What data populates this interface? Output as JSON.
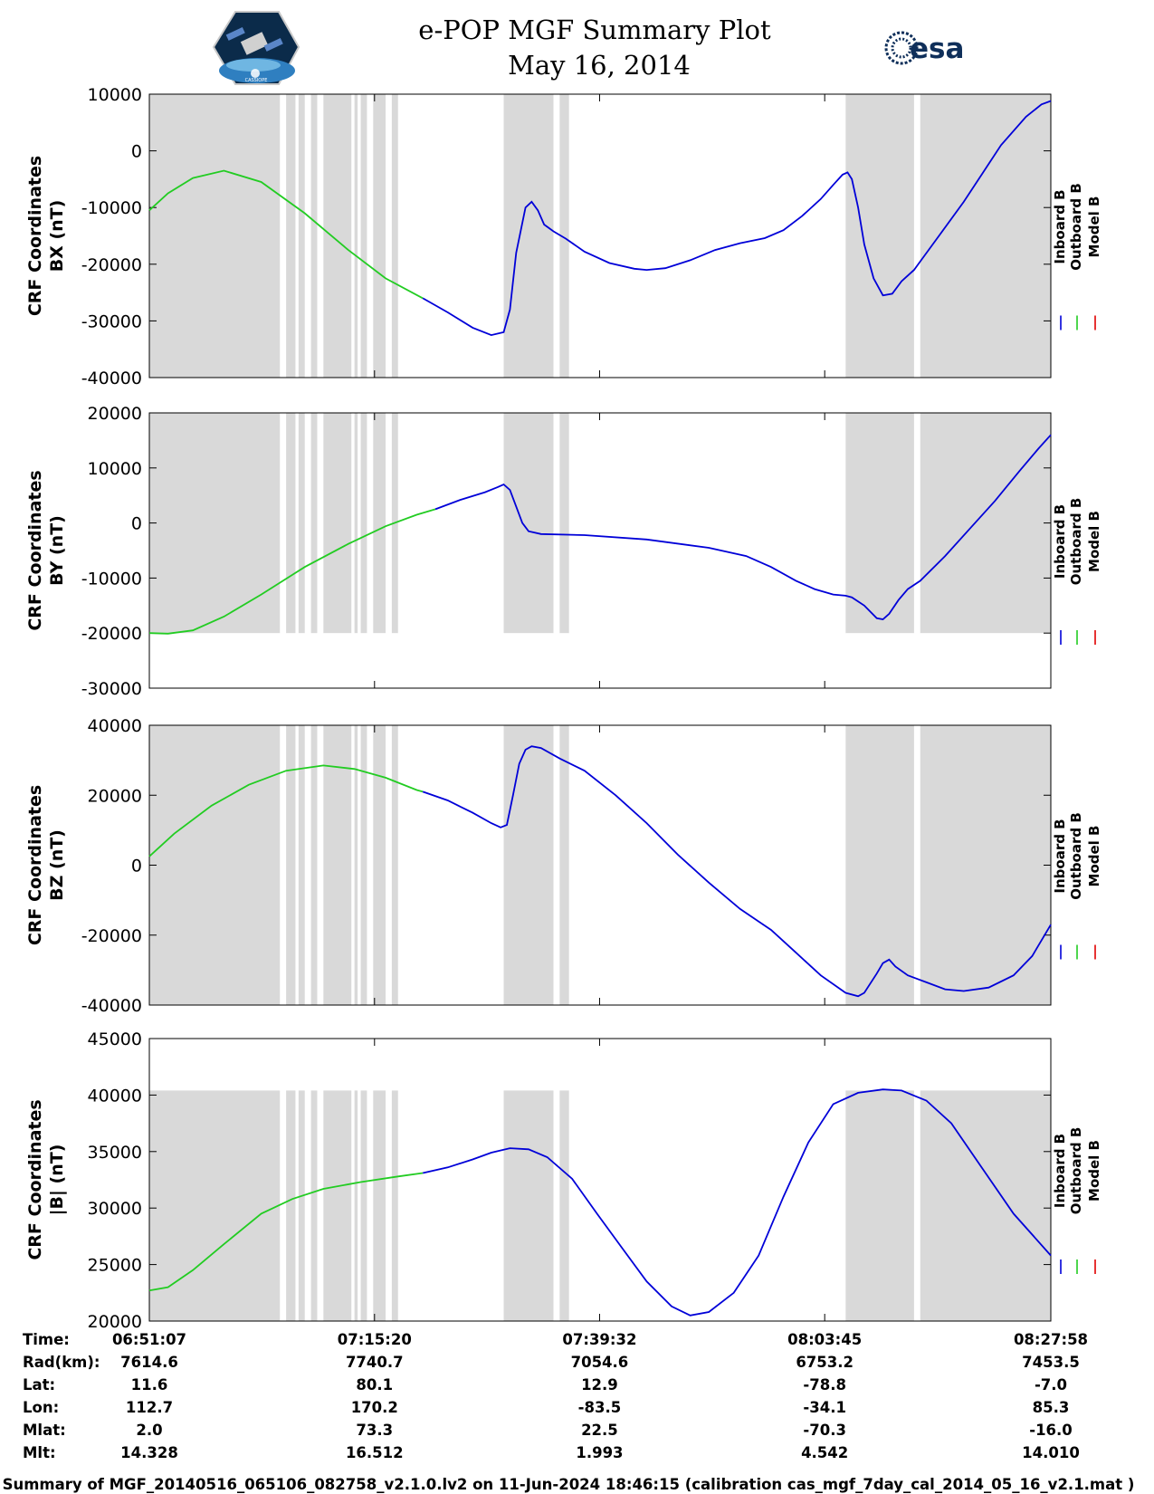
{
  "header": {
    "title": "e-POP MGF Summary Plot",
    "date": "May 16, 2014",
    "esa_logo_text": "esa",
    "cassiope_logo_text": "CASSIOPE"
  },
  "colors": {
    "inboard": "#0000d8",
    "outboard": "#22cc22",
    "model": "#e00000",
    "shade": "#d9d9d9"
  },
  "legend": [
    "Inboard B",
    "Outboard B",
    "Model B"
  ],
  "footer": "Summary of MGF_20140516_065106_082758_v2.1.0.lv2 on 11-Jun-2024 18:46:15 (calibration cas_mgf_7day_cal_2014_05_16_v2.1.mat )",
  "ephemeris": {
    "labels": [
      "Time:",
      "Rad(km):",
      "Lat:",
      "Lon:",
      "Mlat:",
      "Mlt:"
    ],
    "columns": [
      [
        "06:51:07",
        "7614.6",
        "11.6",
        "112.7",
        "2.0",
        "14.328"
      ],
      [
        "07:15:20",
        "7740.7",
        "80.1",
        "170.2",
        "73.3",
        "16.512"
      ],
      [
        "07:39:32",
        "7054.6",
        "12.9",
        "-83.5",
        "22.5",
        "1.993"
      ],
      [
        "08:03:45",
        "6753.2",
        "-78.8",
        "-34.1",
        "-70.3",
        "4.542"
      ],
      [
        "08:27:58",
        "7453.5",
        "-7.0",
        "85.3",
        "-16.0",
        "14.010"
      ]
    ]
  },
  "chart_data": [
    {
      "type": "line",
      "ylabel_line1": "CRF Coordinates",
      "ylabel_line2": "BX (nT)",
      "ylim": [
        -40000,
        10000
      ],
      "yticks": [
        -40000,
        -30000,
        -20000,
        -10000,
        0,
        10000
      ],
      "xlim_min": [
        0,
        96.85
      ],
      "shade_ylim": [
        -40000,
        10000
      ],
      "series": [
        {
          "name": "Outboard B",
          "points": [
            [
              0,
              -10500
            ],
            [
              3,
              -7500
            ],
            [
              7,
              -4800
            ],
            [
              12,
              -3500
            ],
            [
              18,
              -5500
            ],
            [
              25,
              -11000
            ],
            [
              32,
              -17500
            ],
            [
              38,
              -22500
            ],
            [
              44,
              -26000
            ]
          ]
        },
        {
          "name": "Inboard B",
          "points": [
            [
              44,
              -26000
            ],
            [
              48,
              -28500
            ],
            [
              52,
              -31200
            ],
            [
              55,
              -32500
            ],
            [
              57,
              -32000
            ],
            [
              58,
              -28000
            ],
            [
              59,
              -18000
            ],
            [
              60.5,
              -10000
            ],
            [
              61.5,
              -9000
            ],
            [
              62.5,
              -10500
            ],
            [
              63.5,
              -13000
            ],
            [
              65,
              -14200
            ],
            [
              67,
              -15500
            ],
            [
              70,
              -17800
            ],
            [
              74,
              -19800
            ],
            [
              78,
              -20800
            ],
            [
              80,
              -21000
            ],
            [
              83,
              -20700
            ],
            [
              87,
              -19300
            ],
            [
              91,
              -17500
            ],
            [
              95,
              -16300
            ],
            [
              99,
              -15400
            ],
            [
              102,
              -14000
            ],
            [
              105,
              -11500
            ],
            [
              108,
              -8500
            ],
            [
              110,
              -6000
            ],
            [
              111.5,
              -4200
            ],
            [
              112.3,
              -3800
            ],
            [
              113,
              -5000
            ],
            [
              114,
              -10000
            ],
            [
              115,
              -16500
            ],
            [
              116.5,
              -22500
            ],
            [
              118,
              -25500
            ],
            [
              119.5,
              -25200
            ],
            [
              121,
              -23000
            ],
            [
              123,
              -21000
            ],
            [
              127,
              -15000
            ],
            [
              131,
              -9000
            ],
            [
              134,
              -4000
            ],
            [
              137,
              1000
            ],
            [
              141,
              6000
            ],
            [
              143.5,
              8200
            ],
            [
              145,
              8800
            ]
          ]
        }
      ]
    },
    {
      "type": "line",
      "ylabel_line1": "CRF Coordinates",
      "ylabel_line2": "BY (nT)",
      "ylim": [
        -30000,
        20000
      ],
      "yticks": [
        -30000,
        -20000,
        -10000,
        0,
        10000,
        20000
      ],
      "shade_ylim": [
        -20000,
        20000
      ],
      "series": [
        {
          "name": "Outboard B",
          "points": [
            [
              0,
              -20000
            ],
            [
              3,
              -20100
            ],
            [
              7,
              -19500
            ],
            [
              12,
              -17000
            ],
            [
              18,
              -13000
            ],
            [
              25,
              -8000
            ],
            [
              32,
              -3800
            ],
            [
              38,
              -600
            ],
            [
              43,
              1500
            ],
            [
              46,
              2500
            ]
          ]
        },
        {
          "name": "Inboard B",
          "points": [
            [
              46,
              2500
            ],
            [
              50,
              4200
            ],
            [
              54,
              5600
            ],
            [
              56,
              6500
            ],
            [
              57,
              7000
            ],
            [
              58,
              6000
            ],
            [
              59,
              3000
            ],
            [
              60,
              0
            ],
            [
              61,
              -1500
            ],
            [
              63,
              -2000
            ],
            [
              70,
              -2200
            ],
            [
              80,
              -3000
            ],
            [
              90,
              -4500
            ],
            [
              96,
              -6000
            ],
            [
              100,
              -8000
            ],
            [
              104,
              -10500
            ],
            [
              107,
              -12000
            ],
            [
              110,
              -13000
            ],
            [
              112,
              -13200
            ],
            [
              113,
              -13500
            ],
            [
              115,
              -15000
            ],
            [
              117,
              -17300
            ],
            [
              118,
              -17500
            ],
            [
              119,
              -16500
            ],
            [
              120.5,
              -14000
            ],
            [
              122,
              -12000
            ],
            [
              124,
              -10500
            ],
            [
              128,
              -6000
            ],
            [
              132,
              -1000
            ],
            [
              136,
              4000
            ],
            [
              140,
              9500
            ],
            [
              143,
              13500
            ],
            [
              145,
              16000
            ]
          ]
        }
      ]
    },
    {
      "type": "line",
      "ylabel_line1": "CRF Coordinates",
      "ylabel_line2": "BZ (nT)",
      "ylim": [
        -40000,
        40000
      ],
      "yticks": [
        -40000,
        -20000,
        0,
        20000,
        40000
      ],
      "shade_ylim": [
        -40000,
        40000
      ],
      "series": [
        {
          "name": "Outboard B",
          "points": [
            [
              0,
              2500
            ],
            [
              4,
              9000
            ],
            [
              10,
              17000
            ],
            [
              16,
              23000
            ],
            [
              22,
              27000
            ],
            [
              28,
              28500
            ],
            [
              33,
              27500
            ],
            [
              38,
              25000
            ],
            [
              43,
              21500
            ],
            [
              44,
              21000
            ]
          ]
        },
        {
          "name": "Inboard B",
          "points": [
            [
              44,
              21000
            ],
            [
              48,
              18500
            ],
            [
              52,
              15000
            ],
            [
              55,
              12000
            ],
            [
              56.5,
              10800
            ],
            [
              57.5,
              11500
            ],
            [
              58.5,
              20000
            ],
            [
              59.5,
              29000
            ],
            [
              60.5,
              33000
            ],
            [
              61.5,
              34000
            ],
            [
              63,
              33500
            ],
            [
              66,
              30500
            ],
            [
              70,
              27000
            ],
            [
              75,
              20000
            ],
            [
              80,
              12000
            ],
            [
              85,
              3000
            ],
            [
              90,
              -5000
            ],
            [
              95,
              -12500
            ],
            [
              100,
              -18500
            ],
            [
              104,
              -25000
            ],
            [
              108,
              -31500
            ],
            [
              112,
              -36500
            ],
            [
              114,
              -37500
            ],
            [
              115,
              -36500
            ],
            [
              117,
              -31000
            ],
            [
              118,
              -28000
            ],
            [
              119,
              -27000
            ],
            [
              120,
              -29000
            ],
            [
              122,
              -31500
            ],
            [
              125,
              -33500
            ],
            [
              128,
              -35500
            ],
            [
              131,
              -36000
            ],
            [
              135,
              -35000
            ],
            [
              139,
              -31500
            ],
            [
              142,
              -26000
            ],
            [
              145,
              -17000
            ]
          ]
        }
      ]
    },
    {
      "type": "line",
      "ylabel_line1": "CRF Coordinates",
      "ylabel_line2": "|B| (nT)",
      "ylim": [
        20000,
        45000
      ],
      "yticks": [
        20000,
        25000,
        30000,
        35000,
        40000,
        45000
      ],
      "shade_ylim": [
        20000,
        40400
      ],
      "series": [
        {
          "name": "Outboard B",
          "points": [
            [
              0,
              22700
            ],
            [
              3,
              23000
            ],
            [
              7,
              24500
            ],
            [
              12,
              26800
            ],
            [
              18,
              29500
            ],
            [
              23,
              30800
            ],
            [
              28,
              31700
            ],
            [
              34,
              32300
            ],
            [
              40,
              32800
            ],
            [
              44,
              33100
            ]
          ]
        },
        {
          "name": "Inboard B",
          "points": [
            [
              44,
              33100
            ],
            [
              48,
              33600
            ],
            [
              52,
              34300
            ],
            [
              55,
              34900
            ],
            [
              58,
              35300
            ],
            [
              61,
              35200
            ],
            [
              64,
              34500
            ],
            [
              68,
              32600
            ],
            [
              72,
              29500
            ],
            [
              76,
              26500
            ],
            [
              80,
              23500
            ],
            [
              84,
              21300
            ],
            [
              87,
              20500
            ],
            [
              90,
              20800
            ],
            [
              94,
              22500
            ],
            [
              98,
              25800
            ],
            [
              102,
              31000
            ],
            [
              106,
              35800
            ],
            [
              110,
              39200
            ],
            [
              114,
              40200
            ],
            [
              118,
              40500
            ],
            [
              121,
              40400
            ],
            [
              125,
              39500
            ],
            [
              129,
              37500
            ],
            [
              134,
              33500
            ],
            [
              139,
              29500
            ],
            [
              145,
              25800
            ]
          ]
        }
      ]
    }
  ]
}
